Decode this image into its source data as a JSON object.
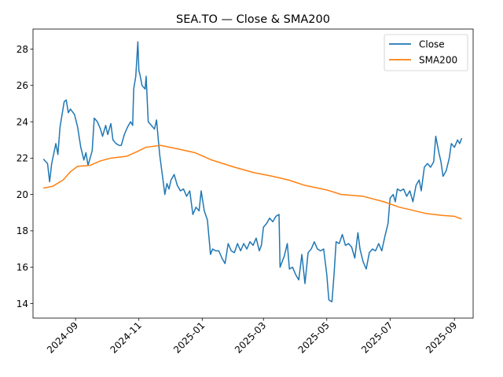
{
  "chart_data": {
    "type": "line",
    "title": "SEA.TO — Close & SMA200",
    "xlabel": "",
    "ylabel": "",
    "grid": false,
    "legend_position": "top-right",
    "x_ticks": [
      "2024-09",
      "2024-11",
      "2025-01",
      "2025-03",
      "2025-05",
      "2025-07",
      "2025-09"
    ],
    "y_ticks": [
      14,
      16,
      18,
      20,
      22,
      24,
      26,
      28
    ],
    "xlim": [
      "2024-07-22",
      "2025-09-19"
    ],
    "ylim": [
      13.2,
      29.1
    ],
    "colors": {
      "close": "#1f77b4",
      "sma": "#ff7f0e"
    },
    "series": [
      {
        "name": "Close",
        "key": "close",
        "points": [
          [
            "2024-08-01",
            21.95
          ],
          [
            "2024-08-05",
            21.7
          ],
          [
            "2024-08-07",
            20.7
          ],
          [
            "2024-08-09",
            21.7
          ],
          [
            "2024-08-13",
            22.8
          ],
          [
            "2024-08-15",
            22.2
          ],
          [
            "2024-08-17",
            23.7
          ],
          [
            "2024-08-21",
            25.1
          ],
          [
            "2024-08-23",
            25.2
          ],
          [
            "2024-08-25",
            24.5
          ],
          [
            "2024-08-27",
            24.7
          ],
          [
            "2024-08-31",
            24.4
          ],
          [
            "2024-09-03",
            23.7
          ],
          [
            "2024-09-06",
            22.6
          ],
          [
            "2024-09-09",
            21.9
          ],
          [
            "2024-09-11",
            22.3
          ],
          [
            "2024-09-13",
            21.6
          ],
          [
            "2024-09-17",
            22.4
          ],
          [
            "2024-09-19",
            24.2
          ],
          [
            "2024-09-22",
            24.0
          ],
          [
            "2024-09-25",
            23.6
          ],
          [
            "2024-09-27",
            23.2
          ],
          [
            "2024-09-30",
            23.8
          ],
          [
            "2024-10-02",
            23.3
          ],
          [
            "2024-10-05",
            23.9
          ],
          [
            "2024-10-07",
            23.0
          ],
          [
            "2024-10-10",
            22.8
          ],
          [
            "2024-10-13",
            22.7
          ],
          [
            "2024-10-15",
            22.7
          ],
          [
            "2024-10-18",
            23.3
          ],
          [
            "2024-10-21",
            23.7
          ],
          [
            "2024-10-24",
            24.0
          ],
          [
            "2024-10-26",
            23.8
          ],
          [
            "2024-10-27",
            25.8
          ],
          [
            "2024-10-29",
            26.5
          ],
          [
            "2024-10-31",
            28.4
          ],
          [
            "2024-11-01",
            26.8
          ],
          [
            "2024-11-02",
            26.6
          ],
          [
            "2024-11-04",
            26.0
          ],
          [
            "2024-11-07",
            25.8
          ],
          [
            "2024-11-08",
            26.5
          ],
          [
            "2024-11-10",
            24.0
          ],
          [
            "2024-11-13",
            23.8
          ],
          [
            "2024-11-16",
            23.6
          ],
          [
            "2024-11-18",
            24.1
          ],
          [
            "2024-11-21",
            22.2
          ],
          [
            "2024-11-24",
            20.9
          ],
          [
            "2024-11-26",
            20.0
          ],
          [
            "2024-11-28",
            20.6
          ],
          [
            "2024-11-30",
            20.3
          ],
          [
            "2024-12-02",
            20.8
          ],
          [
            "2024-12-05",
            21.1
          ],
          [
            "2024-12-08",
            20.5
          ],
          [
            "2024-12-11",
            20.2
          ],
          [
            "2024-12-14",
            20.3
          ],
          [
            "2024-12-17",
            19.9
          ],
          [
            "2024-12-20",
            20.2
          ],
          [
            "2024-12-23",
            18.9
          ],
          [
            "2024-12-26",
            19.3
          ],
          [
            "2024-12-29",
            19.1
          ],
          [
            "2024-12-31",
            20.2
          ],
          [
            "2025-01-03",
            19.1
          ],
          [
            "2025-01-06",
            18.6
          ],
          [
            "2025-01-09",
            16.7
          ],
          [
            "2025-01-11",
            17.0
          ],
          [
            "2025-01-14",
            16.9
          ],
          [
            "2025-01-17",
            16.9
          ],
          [
            "2025-01-20",
            16.5
          ],
          [
            "2025-01-23",
            16.2
          ],
          [
            "2025-01-26",
            17.3
          ],
          [
            "2025-01-29",
            16.9
          ],
          [
            "2025-02-01",
            16.8
          ],
          [
            "2025-02-04",
            17.3
          ],
          [
            "2025-02-07",
            16.9
          ],
          [
            "2025-02-10",
            17.3
          ],
          [
            "2025-02-13",
            17.0
          ],
          [
            "2025-02-16",
            17.4
          ],
          [
            "2025-02-19",
            17.2
          ],
          [
            "2025-02-22",
            17.6
          ],
          [
            "2025-02-25",
            16.9
          ],
          [
            "2025-02-27",
            17.2
          ],
          [
            "2025-03-01",
            18.2
          ],
          [
            "2025-03-04",
            18.4
          ],
          [
            "2025-03-07",
            18.7
          ],
          [
            "2025-03-10",
            18.5
          ],
          [
            "2025-03-13",
            18.8
          ],
          [
            "2025-03-16",
            18.9
          ],
          [
            "2025-03-17",
            16.0
          ],
          [
            "2025-03-21",
            16.6
          ],
          [
            "2025-03-24",
            17.3
          ],
          [
            "2025-03-26",
            15.9
          ],
          [
            "2025-03-29",
            16.0
          ],
          [
            "2025-04-01",
            15.6
          ],
          [
            "2025-04-04",
            15.3
          ],
          [
            "2025-04-07",
            16.7
          ],
          [
            "2025-04-10",
            15.1
          ],
          [
            "2025-04-13",
            16.8
          ],
          [
            "2025-04-16",
            17.0
          ],
          [
            "2025-04-19",
            17.4
          ],
          [
            "2025-04-22",
            17.0
          ],
          [
            "2025-04-25",
            16.9
          ],
          [
            "2025-04-28",
            17.0
          ],
          [
            "2025-05-01",
            15.6
          ],
          [
            "2025-05-03",
            14.2
          ],
          [
            "2025-05-06",
            14.1
          ],
          [
            "2025-05-08",
            15.6
          ],
          [
            "2025-05-10",
            17.4
          ],
          [
            "2025-05-13",
            17.3
          ],
          [
            "2025-05-16",
            17.8
          ],
          [
            "2025-05-19",
            17.2
          ],
          [
            "2025-05-22",
            17.3
          ],
          [
            "2025-05-25",
            17.1
          ],
          [
            "2025-05-28",
            16.5
          ],
          [
            "2025-05-31",
            17.9
          ],
          [
            "2025-06-02",
            17.0
          ],
          [
            "2025-06-05",
            16.3
          ],
          [
            "2025-06-08",
            15.9
          ],
          [
            "2025-06-11",
            16.8
          ],
          [
            "2025-06-14",
            17.0
          ],
          [
            "2025-06-17",
            16.9
          ],
          [
            "2025-06-20",
            17.3
          ],
          [
            "2025-06-23",
            16.9
          ],
          [
            "2025-06-26",
            17.7
          ],
          [
            "2025-06-29",
            18.4
          ],
          [
            "2025-07-01",
            19.8
          ],
          [
            "2025-07-04",
            20.0
          ],
          [
            "2025-07-06",
            19.6
          ],
          [
            "2025-07-08",
            20.3
          ],
          [
            "2025-07-11",
            20.2
          ],
          [
            "2025-07-14",
            20.3
          ],
          [
            "2025-07-17",
            19.9
          ],
          [
            "2025-07-20",
            20.2
          ],
          [
            "2025-07-23",
            19.6
          ],
          [
            "2025-07-26",
            20.5
          ],
          [
            "2025-07-29",
            20.8
          ],
          [
            "2025-07-31",
            20.2
          ],
          [
            "2025-08-03",
            21.5
          ],
          [
            "2025-08-06",
            21.7
          ],
          [
            "2025-08-09",
            21.5
          ],
          [
            "2025-08-12",
            21.8
          ],
          [
            "2025-08-14",
            23.2
          ],
          [
            "2025-08-17",
            22.3
          ],
          [
            "2025-08-19",
            21.8
          ],
          [
            "2025-08-21",
            21.0
          ],
          [
            "2025-08-24",
            21.3
          ],
          [
            "2025-08-27",
            22.0
          ],
          [
            "2025-08-29",
            22.8
          ],
          [
            "2025-09-01",
            22.6
          ],
          [
            "2025-09-04",
            23.0
          ],
          [
            "2025-09-06",
            22.8
          ],
          [
            "2025-09-08",
            23.1
          ]
        ]
      },
      {
        "name": "SMA200",
        "key": "sma",
        "points": [
          [
            "2024-08-01",
            20.35
          ],
          [
            "2024-08-10",
            20.45
          ],
          [
            "2024-08-20",
            20.8
          ],
          [
            "2024-08-27",
            21.25
          ],
          [
            "2024-09-03",
            21.55
          ],
          [
            "2024-09-15",
            21.6
          ],
          [
            "2024-09-25",
            21.85
          ],
          [
            "2024-10-05",
            22.0
          ],
          [
            "2024-10-20",
            22.1
          ],
          [
            "2024-10-30",
            22.35
          ],
          [
            "2024-11-08",
            22.6
          ],
          [
            "2024-11-22",
            22.7
          ],
          [
            "2024-12-05",
            22.55
          ],
          [
            "2024-12-25",
            22.3
          ],
          [
            "2025-01-10",
            21.9
          ],
          [
            "2025-02-01",
            21.5
          ],
          [
            "2025-02-20",
            21.2
          ],
          [
            "2025-03-10",
            21.0
          ],
          [
            "2025-03-25",
            20.8
          ],
          [
            "2025-04-10",
            20.5
          ],
          [
            "2025-05-01",
            20.25
          ],
          [
            "2025-05-15",
            20.0
          ],
          [
            "2025-06-05",
            19.9
          ],
          [
            "2025-06-25",
            19.6
          ],
          [
            "2025-07-10",
            19.3
          ],
          [
            "2025-07-25",
            19.1
          ],
          [
            "2025-08-05",
            18.95
          ],
          [
            "2025-08-20",
            18.85
          ],
          [
            "2025-09-01",
            18.8
          ],
          [
            "2025-09-08",
            18.65
          ]
        ]
      }
    ]
  }
}
